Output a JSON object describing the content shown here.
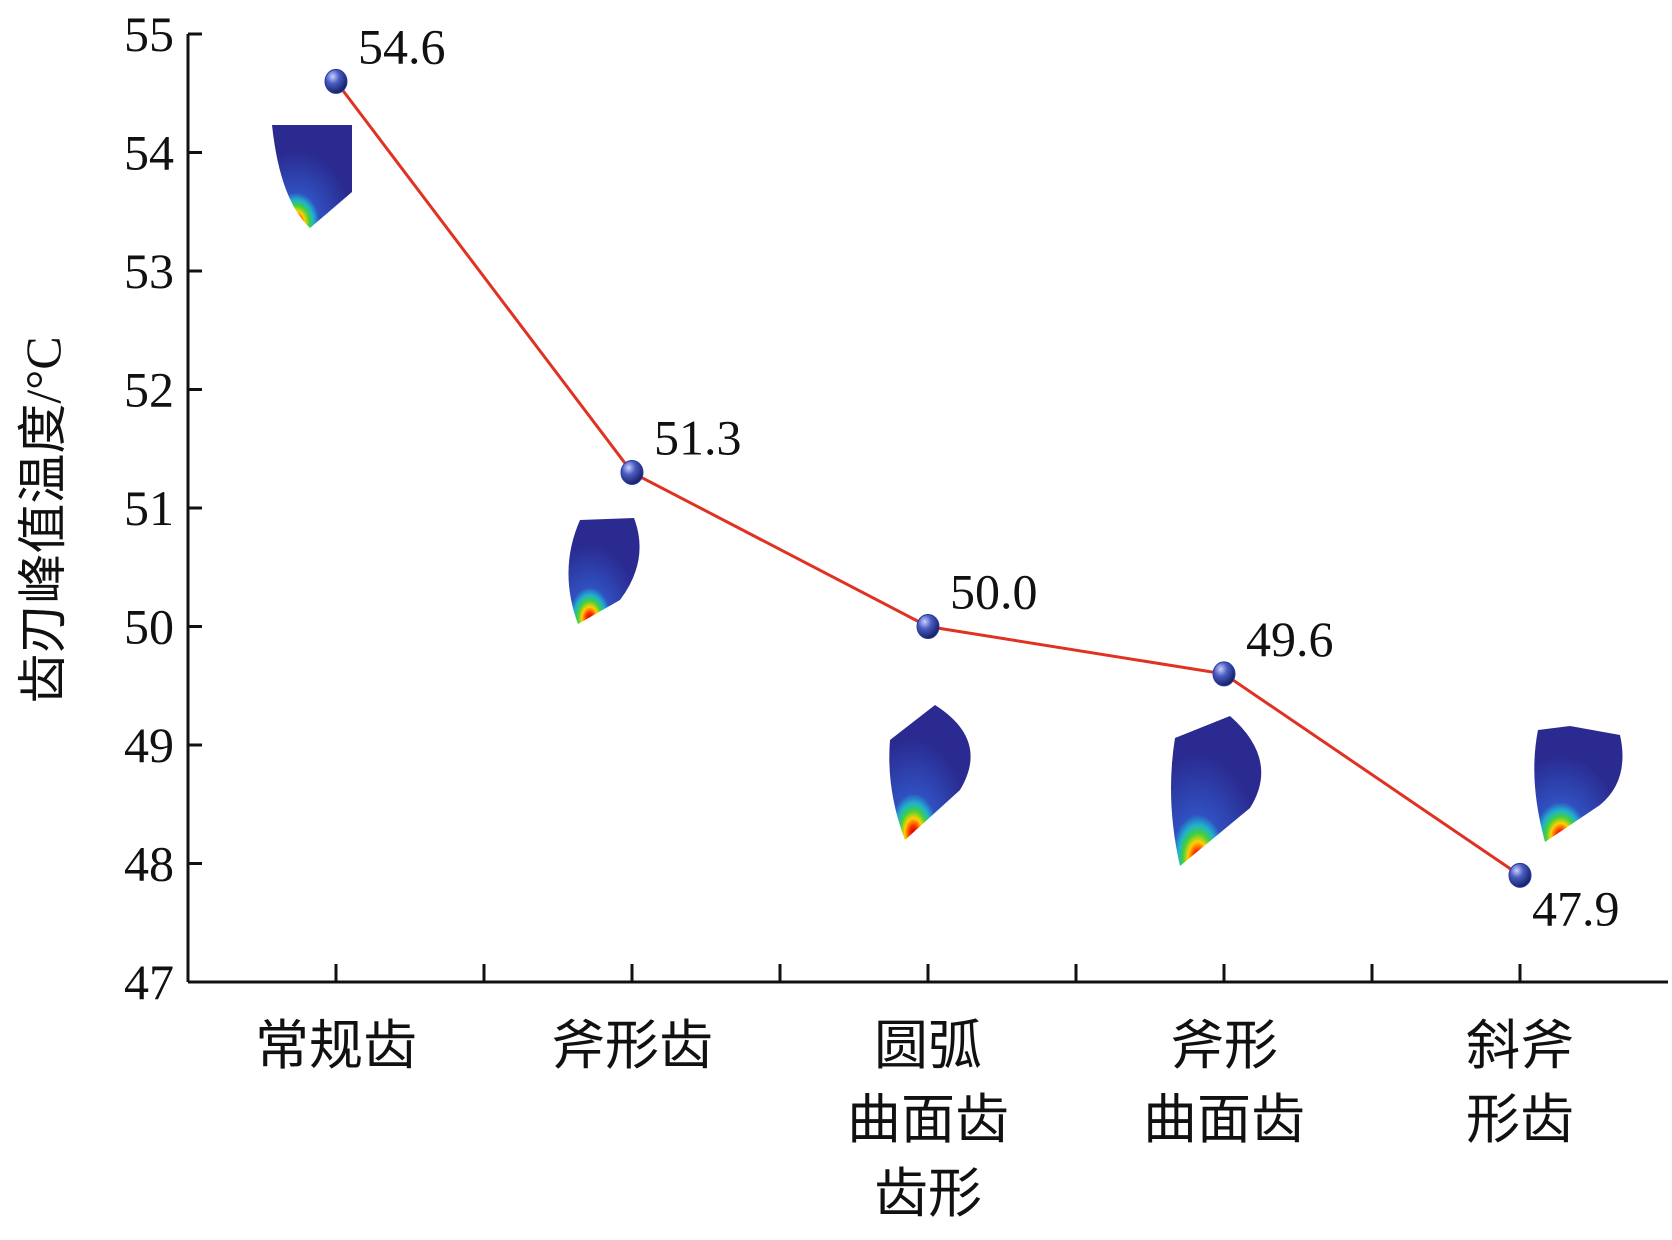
{
  "chart_data": {
    "type": "line",
    "y_label": "齿刃峰值温度/°C",
    "categories": [
      [
        "常规齿"
      ],
      [
        "斧形齿"
      ],
      [
        "圆弧",
        "曲面齿",
        "齿形"
      ],
      [
        "斧形",
        "曲面齿"
      ],
      [
        "斜斧",
        "形齿"
      ]
    ],
    "values": [
      54.6,
      51.3,
      50.0,
      49.6,
      47.9
    ],
    "value_labels": [
      "54.6",
      "51.3",
      "50.0",
      "49.6",
      "47.9"
    ],
    "color": "#e03222",
    "marker_color": "#2a3a9a",
    "ylim": [
      47,
      55
    ],
    "yticks": [
      47,
      48,
      49,
      50,
      51,
      52,
      53,
      54,
      55
    ]
  }
}
